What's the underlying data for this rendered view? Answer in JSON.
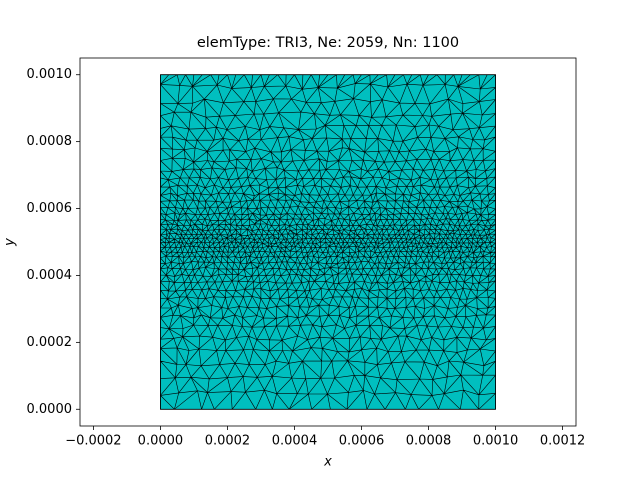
{
  "chart_data": {
    "type": "mesh",
    "title": "elemType: TRI3, Ne: 2059, Nn: 1100",
    "xlabel": "x",
    "ylabel": "y",
    "region": {
      "x": [
        0,
        0.001
      ],
      "y": [
        0,
        0.001
      ]
    },
    "color": "#00bfbf",
    "edge_color": "#000000",
    "xlim": [
      -0.00024,
      0.00124
    ],
    "ylim": [
      -5e-05,
      0.00105
    ],
    "xticks": [
      {
        "value": -0.0002,
        "label": "−0.0002"
      },
      {
        "value": 0,
        "label": "0.0000"
      },
      {
        "value": 0.0002,
        "label": "0.0002"
      },
      {
        "value": 0.0004,
        "label": "0.0004"
      },
      {
        "value": 0.0006,
        "label": "0.0006"
      },
      {
        "value": 0.0008,
        "label": "0.0008"
      },
      {
        "value": 0.001,
        "label": "0.0010"
      },
      {
        "value": 0.0012,
        "label": "0.0012"
      }
    ],
    "yticks": [
      {
        "value": 0,
        "label": "0.0000"
      },
      {
        "value": 0.0002,
        "label": "0.0002"
      },
      {
        "value": 0.0004,
        "label": "0.0004"
      },
      {
        "value": 0.0006,
        "label": "0.0006"
      },
      {
        "value": 0.0008,
        "label": "0.0008"
      },
      {
        "value": 0.001,
        "label": "0.0010"
      }
    ]
  }
}
